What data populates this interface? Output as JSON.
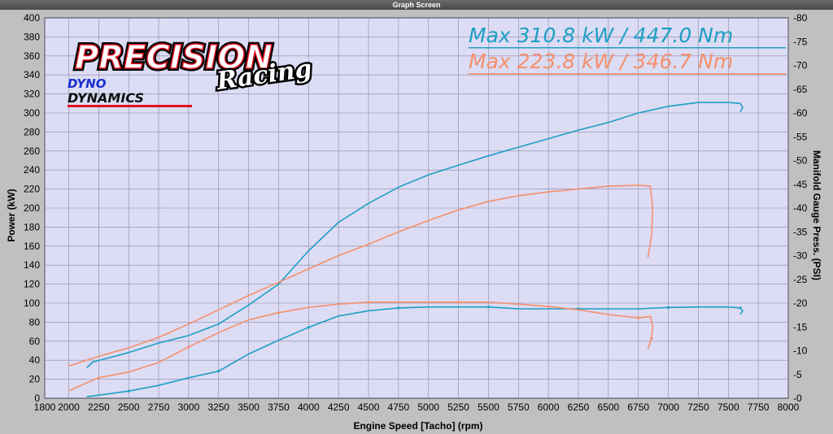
{
  "window": {
    "title": "Graph Screen"
  },
  "colors": {
    "blue": "#1e9fc4",
    "orange": "#f5906a",
    "plot_bg": "#dcdcf4",
    "grid": "#8888a8"
  },
  "logo": {
    "line1": "PRECISION",
    "line2": "Racing",
    "badge1": "DYNO",
    "badge2": "DYNAMICS"
  },
  "max_lines": [
    {
      "text": "Max 310.8 kW  / 447.0 Nm",
      "color": "#1e9fc4"
    },
    {
      "text": "Max 223.8 kW  / 346.7 Nm",
      "color": "#f5906a"
    }
  ],
  "chart_data": {
    "type": "line",
    "xlabel": "Engine Speed [Tacho] (rpm)",
    "ylabel": "Power (kW)",
    "y2label": "Manifold Gauge Press. (PSI)",
    "xlim": [
      1800,
      8000
    ],
    "ylim": [
      0,
      400
    ],
    "y2lim": [
      0,
      80
    ],
    "grid": true,
    "x_ticks": [
      1800,
      2000,
      2250,
      2500,
      2750,
      3000,
      3250,
      3500,
      3750,
      4000,
      4250,
      4500,
      4750,
      5000,
      5250,
      5500,
      5750,
      6000,
      6250,
      6500,
      6750,
      7000,
      7250,
      7500,
      7750,
      8000
    ],
    "y_ticks": [
      0,
      20,
      40,
      60,
      80,
      100,
      120,
      140,
      160,
      180,
      200,
      220,
      240,
      260,
      280,
      300,
      320,
      340,
      360,
      380,
      400
    ],
    "y2_ticks": [
      0,
      5,
      10,
      15,
      20,
      25,
      30,
      35,
      40,
      45,
      50,
      55,
      60,
      65,
      70,
      75,
      80
    ],
    "series": [
      {
        "color": "#1e9fc4",
        "axis": "left",
        "x": [
          2150,
          2200,
          2500,
          2750,
          3000,
          3250,
          3500,
          3750,
          4000,
          4250,
          4500,
          4750,
          5000,
          5250,
          5500,
          5750,
          6000,
          6250,
          6500,
          6750,
          7000,
          7250,
          7500,
          7600,
          7620,
          7600
        ],
        "y": [
          32,
          38,
          48,
          58,
          66,
          78,
          98,
          120,
          155,
          185,
          205,
          222,
          235,
          245,
          255,
          264,
          273,
          282,
          290,
          300,
          307,
          311,
          311,
          310,
          306,
          301
        ]
      },
      {
        "color": "#f5906a",
        "axis": "left",
        "x": [
          2000,
          2250,
          2500,
          2750,
          3000,
          3250,
          3500,
          3750,
          4000,
          4250,
          4500,
          4750,
          5000,
          5250,
          5500,
          5750,
          6000,
          6250,
          6500,
          6750,
          6850,
          6870,
          6860,
          6830
        ],
        "y": [
          34,
          44,
          53,
          64,
          78,
          93,
          108,
          122,
          136,
          150,
          162,
          175,
          187,
          198,
          207,
          213,
          217,
          220,
          223,
          224,
          223,
          200,
          170,
          148
        ]
      },
      {
        "color": "#1e9fc4",
        "axis": "right",
        "x": [
          2150,
          2500,
          2750,
          3000,
          3250,
          3500,
          3750,
          4000,
          4250,
          4500,
          4750,
          5000,
          5250,
          5500,
          5750,
          6000,
          6250,
          6500,
          6750,
          7000,
          7250,
          7500,
          7600,
          7620,
          7600
        ],
        "y": [
          0.3,
          1.5,
          2.7,
          4.3,
          5.7,
          9.3,
          12.2,
          14.9,
          17.3,
          18.4,
          19.0,
          19.2,
          19.2,
          19.2,
          18.8,
          18.8,
          18.8,
          18.8,
          18.8,
          19.1,
          19.2,
          19.2,
          19.0,
          18.4,
          17.6
        ]
      },
      {
        "color": "#f5906a",
        "axis": "right",
        "x": [
          2000,
          2250,
          2500,
          2750,
          3000,
          3250,
          3500,
          3750,
          4000,
          4250,
          4500,
          4750,
          5000,
          5250,
          5500,
          5750,
          6000,
          6250,
          6500,
          6750,
          6850,
          6870,
          6860,
          6830
        ],
        "y": [
          1.6,
          4.3,
          5.5,
          7.5,
          10.8,
          13.8,
          16.5,
          18.0,
          19.1,
          19.8,
          20.2,
          20.2,
          20.2,
          20.2,
          20.2,
          19.8,
          19.3,
          18.6,
          17.6,
          16.9,
          17.2,
          15.1,
          12.6,
          10.4
        ]
      }
    ]
  }
}
